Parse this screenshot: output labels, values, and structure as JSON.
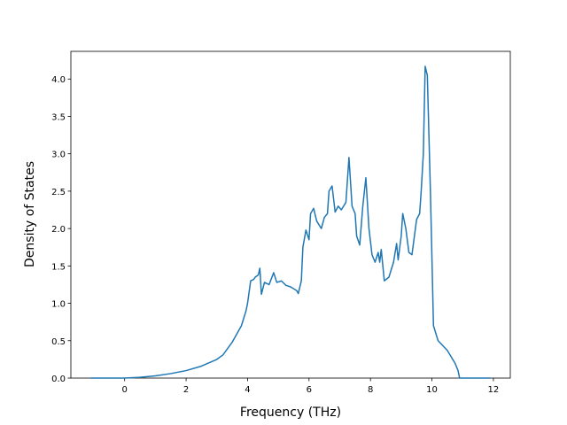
{
  "chart_data": {
    "type": "line",
    "xlabel": "Frequency (THz)",
    "ylabel": "Density of States",
    "x": [
      -1.1,
      0,
      0.5,
      1,
      1.5,
      2,
      2.5,
      3,
      3.2,
      3.5,
      3.8,
      3.95,
      4.0,
      4.1,
      4.2,
      4.25,
      4.35,
      4.4,
      4.45,
      4.55,
      4.7,
      4.85,
      4.95,
      5.1,
      5.25,
      5.4,
      5.6,
      5.65,
      5.75,
      5.8,
      5.9,
      6.0,
      6.05,
      6.15,
      6.25,
      6.4,
      6.5,
      6.6,
      6.65,
      6.75,
      6.85,
      6.95,
      7.05,
      7.2,
      7.3,
      7.4,
      7.5,
      7.55,
      7.65,
      7.75,
      7.85,
      7.95,
      8.05,
      8.15,
      8.25,
      8.3,
      8.35,
      8.45,
      8.6,
      8.75,
      8.85,
      8.9,
      9.0,
      9.05,
      9.15,
      9.25,
      9.35,
      9.5,
      9.6,
      9.65,
      9.72,
      9.78,
      9.85,
      9.95,
      10.05,
      10.2,
      10.5,
      10.75,
      10.85,
      10.9,
      11.9
    ],
    "series": [
      {
        "color": "#1f77b4",
        "values": [
          0,
          0,
          0.01,
          0.03,
          0.06,
          0.1,
          0.16,
          0.25,
          0.31,
          0.48,
          0.7,
          0.9,
          1.0,
          1.3,
          1.32,
          1.35,
          1.38,
          1.47,
          1.12,
          1.28,
          1.25,
          1.41,
          1.28,
          1.3,
          1.24,
          1.22,
          1.17,
          1.13,
          1.3,
          1.75,
          1.98,
          1.85,
          2.2,
          2.27,
          2.1,
          2.0,
          2.15,
          2.2,
          2.5,
          2.57,
          2.22,
          2.3,
          2.25,
          2.35,
          2.95,
          2.3,
          2.2,
          1.9,
          1.78,
          2.3,
          2.68,
          2.0,
          1.65,
          1.55,
          1.68,
          1.55,
          1.72,
          1.3,
          1.35,
          1.55,
          1.8,
          1.58,
          1.9,
          2.2,
          2.0,
          1.68,
          1.65,
          2.12,
          2.2,
          2.5,
          3.0,
          4.17,
          4.05,
          2.5,
          0.7,
          0.5,
          0.37,
          0.2,
          0.1,
          0,
          0
        ]
      }
    ],
    "xlim": [
      -1.75,
      12.55
    ],
    "xticks": [
      0,
      2,
      4,
      6,
      8,
      10,
      12
    ],
    "ylim": [
      0,
      4.37
    ],
    "yticks": [
      {
        "value": 0,
        "label": "0.0"
      },
      {
        "value": 0.5,
        "label": "0.5"
      },
      {
        "value": 1,
        "label": "1.0"
      },
      {
        "value": 1.5,
        "label": "1.5"
      },
      {
        "value": 2,
        "label": "2.0"
      },
      {
        "value": 2.5,
        "label": "2.5"
      },
      {
        "value": 3,
        "label": "3.0"
      },
      {
        "value": 3.5,
        "label": "3.5"
      },
      {
        "value": 4,
        "label": "4.0"
      }
    ]
  }
}
